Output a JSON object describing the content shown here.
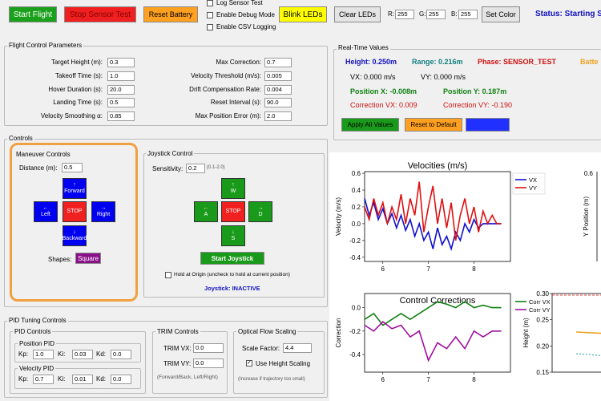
{
  "toolbar": {
    "start_flight": "Start Flight",
    "stop_sensor_test": "Stop Sensor Test",
    "reset_battery": "Reset Battery",
    "log_sensor_test": "Log Sensor Test",
    "enable_debug_mode": "Enable Debug Mode",
    "enable_csv_logging": "Enable CSV Logging",
    "blink_leds": "Blink LEDs",
    "clear_leds": "Clear LEDs",
    "r_label": "R:",
    "r_value": "255",
    "g_label": "G:",
    "g_value": "255",
    "b_label": "B:",
    "b_value": "255",
    "set_color": "Set Color",
    "status": "Status: Starting S"
  },
  "flight_params": {
    "title": "Flight Control Parameters",
    "left": [
      {
        "label": "Target Height (m):",
        "value": "0.3"
      },
      {
        "label": "Takeoff Time (s):",
        "value": "1.0"
      },
      {
        "label": "Hover Duration (s):",
        "value": "20.0"
      },
      {
        "label": "Landing Time (s):",
        "value": "0.5"
      },
      {
        "label": "Velocity Smoothing α:",
        "value": "0.85"
      }
    ],
    "right": [
      {
        "label": "Max Correction:",
        "value": "0.7"
      },
      {
        "label": "Velocity Threshold (m/s):",
        "value": "0.005"
      },
      {
        "label": "Drift Compensation Rate:",
        "value": "0.004"
      },
      {
        "label": "Reset Interval (s):",
        "value": "90.0"
      },
      {
        "label": "Max Position Error (m):",
        "value": "2.0"
      }
    ]
  },
  "controls": {
    "title": "Controls",
    "maneuver": {
      "title": "Maneuver Controls",
      "distance_label": "Distance (m):",
      "distance_value": "0.5",
      "forward": "Forward",
      "left": "Left",
      "stop": "STOP",
      "right": "Right",
      "backward": "Backward",
      "up_arrow": "↑",
      "down_arrow": "↓",
      "left_arrow": "←",
      "right_arrow": "→",
      "shapes_label": "Shapes:",
      "shape_value": "Square"
    },
    "joystick": {
      "title": "Joystick Control",
      "sensitivity_label": "Sensitivity:",
      "sensitivity_value": "0.2",
      "sensitivity_hint": "(0.1-2.0)",
      "w": "W",
      "a": "A",
      "stop": "STOP",
      "d": "D",
      "s": "S",
      "start": "Start Joystick",
      "hold_label": "Hold at Origin (uncheck to hold at current position)",
      "status": "Joystick: INACTIVE"
    }
  },
  "pid": {
    "title": "PID Tuning Controls",
    "controls_title": "PID Controls",
    "position_title": "Position PID",
    "position": [
      {
        "label": "Kp:",
        "value": "1.0"
      },
      {
        "label": "Ki:",
        "value": "0.03"
      },
      {
        "label": "Kd:",
        "value": "0.0"
      }
    ],
    "velocity_title": "Velocity PID",
    "velocity": [
      {
        "label": "Kp:",
        "value": "0.7"
      },
      {
        "label": "Ki:",
        "value": "0.01"
      },
      {
        "label": "Kd:",
        "value": "0.0"
      }
    ],
    "trim_title": "TRIM Controls",
    "trim_vx_label": "TRIM VX:",
    "trim_vx_value": "0.0",
    "trim_vy_label": "TRIM VY:",
    "trim_vy_value": "0.0",
    "trim_hint": "(Forward/Back, Left/Right)",
    "flow_title": "Optical Flow Scaling",
    "scale_label": "Scale Factor:",
    "scale_value": "4.4",
    "use_height_label": "Use Height Scaling",
    "flow_hint": "(Increase if trajectory too small)"
  },
  "realtime": {
    "title": "Real-Time Values",
    "height": "Height: 0.250m",
    "range": "Range: 0.216m",
    "phase": "Phase: SENSOR_TEST",
    "battery": "Batte",
    "vx": "VX: 0.000 m/s",
    "vy": "VY: 0.000 m/s",
    "pos_x": "Position X: -0.008m",
    "pos_y": "Position Y: 0.187m",
    "corr_vx": "Correction VX: 0.009",
    "corr_vy": "Correction VY: -0.190",
    "apply_all": "Apply All Values",
    "reset_default": "Reset to Default",
    "third_button": ""
  },
  "colors": {
    "start_green": "#1aa01a",
    "stop_red": "#f02020",
    "reset_orange": "#ffa020",
    "blink_yellow": "#ffff00",
    "highlight_orange": "#f0a040",
    "status_blue": "#1010c0"
  },
  "chart_data": [
    {
      "type": "line",
      "title": "Velocities (m/s)",
      "ylabel": "Velocity (m/s)",
      "xticks": [
        "6",
        "7",
        "8"
      ],
      "yticks": [
        "0.6",
        "0.4",
        "0.2",
        "0.0",
        "-0.2",
        "-0.4"
      ],
      "xlim": [
        5.6,
        8.8
      ],
      "ylim": [
        -0.45,
        0.62
      ],
      "series": [
        {
          "name": "VX",
          "color": "#1010d0",
          "x": [
            5.6,
            5.7,
            5.8,
            5.9,
            6.0,
            6.1,
            6.2,
            6.3,
            6.4,
            6.5,
            6.6,
            6.7,
            6.8,
            6.9,
            7.0,
            7.1,
            7.2,
            7.3,
            7.4,
            7.5,
            7.6,
            7.7,
            7.8,
            7.9,
            8.0,
            8.1,
            8.2,
            8.3,
            8.4,
            8.5,
            8.6
          ],
          "values": [
            0.3,
            0.1,
            0.25,
            0.05,
            0.18,
            0.0,
            0.12,
            -0.05,
            0.1,
            -0.08,
            0.05,
            -0.15,
            0.0,
            -0.2,
            -0.1,
            -0.3,
            -0.05,
            -0.25,
            -0.15,
            -0.3,
            -0.1,
            -0.2,
            0.0,
            -0.1,
            0.05,
            -0.05,
            0.0,
            0.0,
            0.0,
            0.0,
            0.0
          ]
        },
        {
          "name": "VY",
          "color": "#e01010",
          "x": [
            5.6,
            5.7,
            5.8,
            5.9,
            6.0,
            6.1,
            6.2,
            6.3,
            6.4,
            6.5,
            6.6,
            6.7,
            6.8,
            6.9,
            7.0,
            7.1,
            7.2,
            7.3,
            7.4,
            7.5,
            7.6,
            7.7,
            7.8,
            7.9,
            8.0,
            8.1,
            8.2,
            8.3,
            8.4,
            8.5,
            8.6
          ],
          "values": [
            0.2,
            0.05,
            0.3,
            0.1,
            0.25,
            0.0,
            0.2,
            0.05,
            0.35,
            0.0,
            0.3,
            0.1,
            0.5,
            -0.1,
            0.2,
            0.45,
            0.0,
            0.3,
            -0.05,
            0.25,
            -0.2,
            0.1,
            0.3,
            0.0,
            0.2,
            -0.1,
            0.15,
            0.0,
            0.1,
            0.0,
            0.0
          ]
        }
      ]
    },
    {
      "type": "line",
      "title": "Control Corrections",
      "ylabel": "Correction",
      "xticks": [
        "6",
        "7",
        "8"
      ],
      "yticks": [
        "0.0",
        "-0.2",
        "-0.4"
      ],
      "xlim": [
        5.6,
        8.8
      ],
      "ylim": [
        -0.55,
        0.12
      ],
      "series": [
        {
          "name": "Corr VX",
          "color": "#108010",
          "x": [
            5.6,
            5.8,
            6.0,
            6.2,
            6.4,
            6.6,
            6.8,
            7.0,
            7.2,
            7.4,
            7.6,
            7.8,
            8.0,
            8.2,
            8.4,
            8.6
          ],
          "values": [
            -0.1,
            -0.05,
            -0.15,
            -0.1,
            -0.05,
            -0.1,
            -0.05,
            0.0,
            0.05,
            0.03,
            0.0,
            0.05,
            0.0,
            0.02,
            0.0,
            0.0
          ]
        },
        {
          "name": "Corr VY",
          "color": "#a010a0",
          "x": [
            5.6,
            5.8,
            6.0,
            6.2,
            6.4,
            6.6,
            6.8,
            7.0,
            7.2,
            7.4,
            7.6,
            7.8,
            8.0,
            8.2,
            8.4,
            8.6
          ],
          "values": [
            -0.15,
            -0.2,
            -0.12,
            -0.18,
            -0.15,
            -0.25,
            -0.2,
            -0.45,
            -0.3,
            -0.35,
            -0.25,
            -0.35,
            -0.2,
            -0.25,
            -0.2,
            -0.2
          ]
        }
      ]
    },
    {
      "type": "line",
      "ylabel": "Y Position (m)",
      "yticks": [
        "0.6",
        "0.4",
        "0.2",
        "0.0",
        "-0.2",
        "-0.4"
      ]
    },
    {
      "type": "line",
      "ylabel": "Height (m)",
      "yticks": [
        "0.30",
        "0.25",
        "0.20",
        "0.15"
      ],
      "ylim": [
        0.15,
        0.3
      ]
    }
  ]
}
